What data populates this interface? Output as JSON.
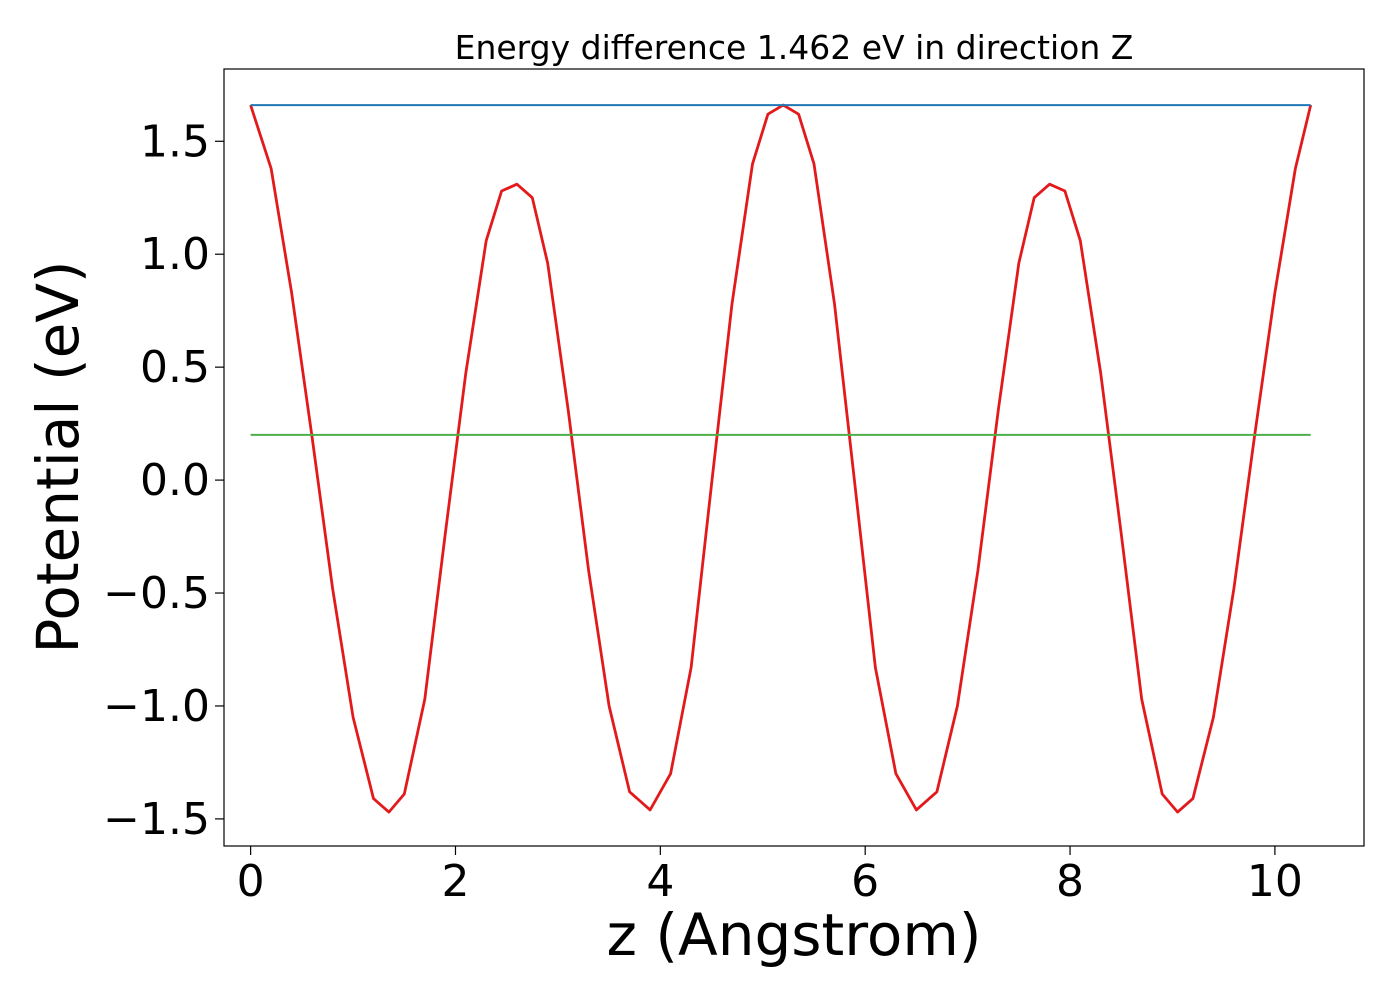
{
  "chart_data": {
    "type": "line",
    "title": "Energy difference 1.462 eV in direction Z",
    "xlabel": "z (Angstrom)",
    "ylabel": "Potential (eV)",
    "xlim": [
      -0.26,
      10.87
    ],
    "ylim": [
      -1.62,
      1.82
    ],
    "grid": false,
    "legend": "none",
    "xticks": [
      0,
      2,
      4,
      6,
      8,
      10
    ],
    "xtick_labels": [
      "0",
      "2",
      "4",
      "6",
      "8",
      "10"
    ],
    "yticks": [
      -1.5,
      -1.0,
      -0.5,
      0.0,
      0.5,
      1.0,
      1.5
    ],
    "ytick_labels": [
      "−1.5",
      "−1.0",
      "−0.5",
      "0.0",
      "0.5",
      "1.0",
      "1.5"
    ],
    "series": [
      {
        "color": "#e31a1c",
        "x": [
          0,
          0.2,
          0.4,
          0.6,
          0.8,
          1.0,
          1.2,
          1.35,
          1.5,
          1.7,
          1.9,
          2.1,
          2.3,
          2.45,
          2.6,
          2.75,
          2.9,
          3.1,
          3.3,
          3.5,
          3.7,
          3.9,
          4.1,
          4.3,
          4.5,
          4.7,
          4.9,
          5.05,
          5.2,
          5.35,
          5.5,
          5.7,
          5.9,
          6.1,
          6.3,
          6.5,
          6.7,
          6.9,
          7.1,
          7.3,
          7.5,
          7.65,
          7.8,
          7.95,
          8.1,
          8.3,
          8.5,
          8.7,
          8.9,
          9.05,
          9.2,
          9.4,
          9.6,
          9.8,
          10.0,
          10.2,
          10.35
        ],
        "y": [
          1.66,
          1.38,
          0.83,
          0.19,
          -0.48,
          -1.05,
          -1.41,
          -1.47,
          -1.39,
          -0.97,
          -0.24,
          0.47,
          1.06,
          1.28,
          1.31,
          1.25,
          0.96,
          0.31,
          -0.4,
          -1.0,
          -1.38,
          -1.46,
          -1.3,
          -0.83,
          -0.02,
          0.78,
          1.4,
          1.62,
          1.66,
          1.62,
          1.4,
          0.78,
          -0.02,
          -0.83,
          -1.3,
          -1.46,
          -1.38,
          -1.0,
          -0.4,
          0.31,
          0.96,
          1.25,
          1.31,
          1.28,
          1.06,
          0.47,
          -0.24,
          -0.97,
          -1.39,
          -1.47,
          -1.41,
          -1.05,
          -0.48,
          0.19,
          0.83,
          1.38,
          1.66
        ]
      },
      {
        "color": "#1f77b4",
        "x": [
          0,
          10.35
        ],
        "y": [
          1.66,
          1.66
        ]
      },
      {
        "color": "#4daf4a",
        "x": [
          0,
          10.35
        ],
        "y": [
          0.2,
          0.2
        ]
      }
    ]
  }
}
